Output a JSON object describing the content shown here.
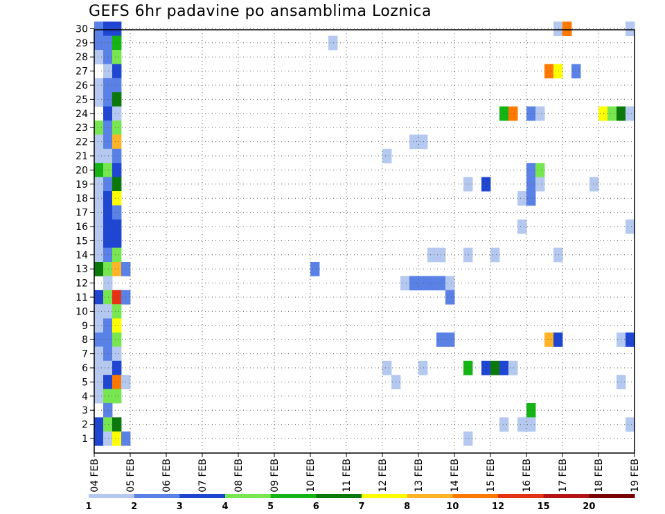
{
  "chart_data": {
    "type": "heatmap",
    "title": "GEFS 6hr padavine po ansamblima Loznica",
    "xlabel": "",
    "ylabel": "",
    "x_tick_labels": [
      "04 FEB",
      "05 FEB",
      "06 FEB",
      "07 FEB",
      "08 FEB",
      "09 FEB",
      "10 FEB",
      "11 FEB",
      "12 FEB",
      "13 FEB",
      "14 FEB",
      "15 FEB",
      "16 FEB",
      "17 FEB",
      "18 FEB",
      "19 FEB"
    ],
    "y_tick_labels": [
      "1",
      "2",
      "3",
      "4",
      "5",
      "6",
      "7",
      "8",
      "9",
      "10",
      "11",
      "12",
      "13",
      "14",
      "15",
      "16",
      "17",
      "18",
      "19",
      "20",
      "21",
      "22",
      "23",
      "24",
      "25",
      "26",
      "27",
      "28",
      "29",
      "30"
    ],
    "ylim": [
      1,
      30
    ],
    "steps_per_day": 4,
    "grid": true,
    "legend": {
      "position": "bottom",
      "bins": [
        {
          "label": "1",
          "color": "#b4c8f0"
        },
        {
          "label": "2",
          "color": "#5a82e6"
        },
        {
          "label": "3",
          "color": "#1e46d2"
        },
        {
          "label": "4",
          "color": "#78e650"
        },
        {
          "label": "5",
          "color": "#14b414"
        },
        {
          "label": "6",
          "color": "#0a780a"
        },
        {
          "label": "7",
          "color": "#ffff00"
        },
        {
          "label": "8",
          "color": "#ffb428"
        },
        {
          "label": "10",
          "color": "#ff7800"
        },
        {
          "label": "12",
          "color": "#e63214"
        },
        {
          "label": "15",
          "color": "#b41414"
        },
        {
          "label": "20",
          "color": "#780000"
        }
      ]
    },
    "cells": [
      {
        "member": 30,
        "step": 1,
        "value": 2
      },
      {
        "member": 30,
        "step": 2,
        "value": 3
      },
      {
        "member": 30,
        "step": 3,
        "value": 3
      },
      {
        "member": 30,
        "step": 52,
        "value": 1
      },
      {
        "member": 30,
        "step": 53,
        "value": 10
      },
      {
        "member": 30,
        "step": 60,
        "value": 1
      },
      {
        "member": 29,
        "step": 1,
        "value": 2
      },
      {
        "member": 29,
        "step": 2,
        "value": 2
      },
      {
        "member": 29,
        "step": 3,
        "value": 5
      },
      {
        "member": 29,
        "step": 27,
        "value": 1
      },
      {
        "member": 28,
        "step": 1,
        "value": 1
      },
      {
        "member": 28,
        "step": 2,
        "value": 2
      },
      {
        "member": 28,
        "step": 3,
        "value": 4
      },
      {
        "member": 27,
        "step": 2,
        "value": 1
      },
      {
        "member": 27,
        "step": 3,
        "value": 3
      },
      {
        "member": 27,
        "step": 51,
        "value": 10
      },
      {
        "member": 27,
        "step": 52,
        "value": 7
      },
      {
        "member": 27,
        "step": 54,
        "value": 2
      },
      {
        "member": 26,
        "step": 1,
        "value": 1
      },
      {
        "member": 26,
        "step": 2,
        "value": 2
      },
      {
        "member": 26,
        "step": 3,
        "value": 2
      },
      {
        "member": 25,
        "step": 1,
        "value": 1
      },
      {
        "member": 25,
        "step": 2,
        "value": 2
      },
      {
        "member": 25,
        "step": 3,
        "value": 6
      },
      {
        "member": 24,
        "step": 2,
        "value": 3
      },
      {
        "member": 24,
        "step": 3,
        "value": 1
      },
      {
        "member": 24,
        "step": 46,
        "value": 5
      },
      {
        "member": 24,
        "step": 47,
        "value": 10
      },
      {
        "member": 24,
        "step": 49,
        "value": 2
      },
      {
        "member": 24,
        "step": 50,
        "value": 1
      },
      {
        "member": 24,
        "step": 57,
        "value": 7
      },
      {
        "member": 24,
        "step": 58,
        "value": 4
      },
      {
        "member": 24,
        "step": 59,
        "value": 6
      },
      {
        "member": 24,
        "step": 60,
        "value": 1
      },
      {
        "member": 23,
        "step": 1,
        "value": 4
      },
      {
        "member": 23,
        "step": 2,
        "value": 2
      },
      {
        "member": 23,
        "step": 3,
        "value": 4
      },
      {
        "member": 22,
        "step": 1,
        "value": 1
      },
      {
        "member": 22,
        "step": 2,
        "value": 2
      },
      {
        "member": 22,
        "step": 3,
        "value": 8
      },
      {
        "member": 22,
        "step": 36,
        "value": 1
      },
      {
        "member": 22,
        "step": 37,
        "value": 1
      },
      {
        "member": 21,
        "step": 1,
        "value": 1
      },
      {
        "member": 21,
        "step": 2,
        "value": 1
      },
      {
        "member": 21,
        "step": 3,
        "value": 2
      },
      {
        "member": 21,
        "step": 33,
        "value": 1
      },
      {
        "member": 20,
        "step": 1,
        "value": 5
      },
      {
        "member": 20,
        "step": 2,
        "value": 4
      },
      {
        "member": 20,
        "step": 3,
        "value": 3
      },
      {
        "member": 20,
        "step": 49,
        "value": 2
      },
      {
        "member": 20,
        "step": 50,
        "value": 4
      },
      {
        "member": 19,
        "step": 1,
        "value": 1
      },
      {
        "member": 19,
        "step": 2,
        "value": 2
      },
      {
        "member": 19,
        "step": 3,
        "value": 6
      },
      {
        "member": 19,
        "step": 42,
        "value": 1
      },
      {
        "member": 19,
        "step": 44,
        "value": 3
      },
      {
        "member": 19,
        "step": 49,
        "value": 2
      },
      {
        "member": 19,
        "step": 50,
        "value": 1
      },
      {
        "member": 19,
        "step": 56,
        "value": 1
      },
      {
        "member": 18,
        "step": 1,
        "value": 1
      },
      {
        "member": 18,
        "step": 2,
        "value": 3
      },
      {
        "member": 18,
        "step": 3,
        "value": 7
      },
      {
        "member": 18,
        "step": 48,
        "value": 1
      },
      {
        "member": 18,
        "step": 49,
        "value": 2
      },
      {
        "member": 17,
        "step": 1,
        "value": 1
      },
      {
        "member": 17,
        "step": 2,
        "value": 3
      },
      {
        "member": 17,
        "step": 3,
        "value": 2
      },
      {
        "member": 16,
        "step": 1,
        "value": 1
      },
      {
        "member": 16,
        "step": 2,
        "value": 3
      },
      {
        "member": 16,
        "step": 3,
        "value": 3
      },
      {
        "member": 16,
        "step": 48,
        "value": 1
      },
      {
        "member": 16,
        "step": 60,
        "value": 1
      },
      {
        "member": 15,
        "step": 1,
        "value": 1
      },
      {
        "member": 15,
        "step": 2,
        "value": 3
      },
      {
        "member": 15,
        "step": 3,
        "value": 3
      },
      {
        "member": 14,
        "step": 1,
        "value": 1
      },
      {
        "member": 14,
        "step": 2,
        "value": 2
      },
      {
        "member": 14,
        "step": 3,
        "value": 4
      },
      {
        "member": 14,
        "step": 38,
        "value": 1
      },
      {
        "member": 14,
        "step": 39,
        "value": 1
      },
      {
        "member": 14,
        "step": 42,
        "value": 1
      },
      {
        "member": 14,
        "step": 45,
        "value": 1
      },
      {
        "member": 14,
        "step": 52,
        "value": 1
      },
      {
        "member": 13,
        "step": 1,
        "value": 6
      },
      {
        "member": 13,
        "step": 2,
        "value": 4
      },
      {
        "member": 13,
        "step": 3,
        "value": 8
      },
      {
        "member": 13,
        "step": 4,
        "value": 2
      },
      {
        "member": 13,
        "step": 25,
        "value": 2
      },
      {
        "member": 12,
        "step": 2,
        "value": 1
      },
      {
        "member": 12,
        "step": 35,
        "value": 1
      },
      {
        "member": 12,
        "step": 36,
        "value": 2
      },
      {
        "member": 12,
        "step": 37,
        "value": 2
      },
      {
        "member": 12,
        "step": 38,
        "value": 2
      },
      {
        "member": 12,
        "step": 39,
        "value": 2
      },
      {
        "member": 12,
        "step": 40,
        "value": 1
      },
      {
        "member": 11,
        "step": 1,
        "value": 3
      },
      {
        "member": 11,
        "step": 2,
        "value": 4
      },
      {
        "member": 11,
        "step": 3,
        "value": 12
      },
      {
        "member": 11,
        "step": 4,
        "value": 2
      },
      {
        "member": 11,
        "step": 40,
        "value": 2
      },
      {
        "member": 10,
        "step": 1,
        "value": 1
      },
      {
        "member": 10,
        "step": 2,
        "value": 1
      },
      {
        "member": 10,
        "step": 3,
        "value": 4
      },
      {
        "member": 9,
        "step": 1,
        "value": 1
      },
      {
        "member": 9,
        "step": 2,
        "value": 2
      },
      {
        "member": 9,
        "step": 3,
        "value": 7
      },
      {
        "member": 8,
        "step": 1,
        "value": 2
      },
      {
        "member": 8,
        "step": 2,
        "value": 2
      },
      {
        "member": 8,
        "step": 3,
        "value": 4
      },
      {
        "member": 8,
        "step": 39,
        "value": 2
      },
      {
        "member": 8,
        "step": 40,
        "value": 2
      },
      {
        "member": 8,
        "step": 51,
        "value": 8
      },
      {
        "member": 8,
        "step": 52,
        "value": 3
      },
      {
        "member": 8,
        "step": 59,
        "value": 1
      },
      {
        "member": 8,
        "step": 60,
        "value": 3
      },
      {
        "member": 7,
        "step": 1,
        "value": 1
      },
      {
        "member": 7,
        "step": 2,
        "value": 2
      },
      {
        "member": 7,
        "step": 3,
        "value": 1
      },
      {
        "member": 6,
        "step": 1,
        "value": 1
      },
      {
        "member": 6,
        "step": 2,
        "value": 1
      },
      {
        "member": 6,
        "step": 3,
        "value": 3
      },
      {
        "member": 6,
        "step": 33,
        "value": 1
      },
      {
        "member": 6,
        "step": 37,
        "value": 1
      },
      {
        "member": 6,
        "step": 42,
        "value": 5
      },
      {
        "member": 6,
        "step": 44,
        "value": 3
      },
      {
        "member": 6,
        "step": 45,
        "value": 6
      },
      {
        "member": 6,
        "step": 46,
        "value": 3
      },
      {
        "member": 6,
        "step": 47,
        "value": 1
      },
      {
        "member": 5,
        "step": 1,
        "value": 1
      },
      {
        "member": 5,
        "step": 2,
        "value": 3
      },
      {
        "member": 5,
        "step": 3,
        "value": 10
      },
      {
        "member": 5,
        "step": 4,
        "value": 1
      },
      {
        "member": 5,
        "step": 34,
        "value": 1
      },
      {
        "member": 5,
        "step": 59,
        "value": 1
      },
      {
        "member": 4,
        "step": 1,
        "value": 1
      },
      {
        "member": 4,
        "step": 2,
        "value": 4
      },
      {
        "member": 4,
        "step": 3,
        "value": 4
      },
      {
        "member": 3,
        "step": 2,
        "value": 2
      },
      {
        "member": 3,
        "step": 49,
        "value": 5
      },
      {
        "member": 2,
        "step": 1,
        "value": 3
      },
      {
        "member": 2,
        "step": 2,
        "value": 4
      },
      {
        "member": 2,
        "step": 3,
        "value": 6
      },
      {
        "member": 2,
        "step": 46,
        "value": 1
      },
      {
        "member": 2,
        "step": 48,
        "value": 1
      },
      {
        "member": 2,
        "step": 49,
        "value": 1
      },
      {
        "member": 2,
        "step": 60,
        "value": 1
      },
      {
        "member": 1,
        "step": 1,
        "value": 3
      },
      {
        "member": 1,
        "step": 2,
        "value": 1
      },
      {
        "member": 1,
        "step": 3,
        "value": 7
      },
      {
        "member": 1,
        "step": 4,
        "value": 2
      },
      {
        "member": 1,
        "step": 42,
        "value": 1
      }
    ]
  }
}
